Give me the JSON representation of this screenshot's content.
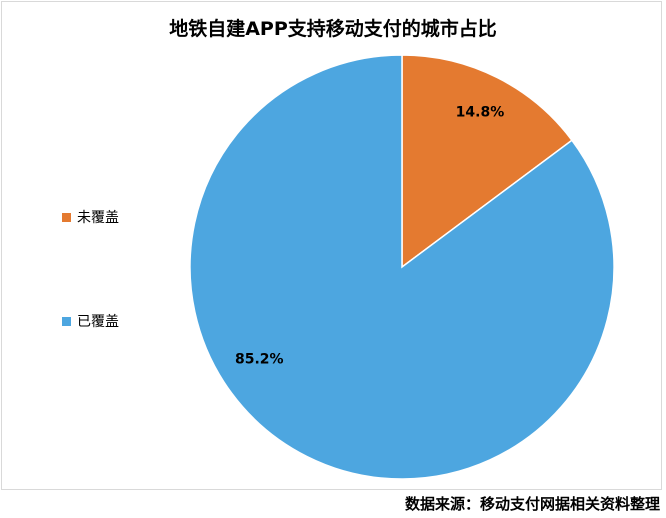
{
  "chart_data": {
    "type": "pie",
    "title": "地铁自建APP支持移动支付的城市占比",
    "slices": [
      {
        "name": "未覆盖",
        "value": 14.8,
        "label": "14.8%",
        "color": "#E47A30"
      },
      {
        "name": "已覆盖",
        "value": 85.2,
        "label": "85.2%",
        "color": "#4DA6E0"
      }
    ],
    "legend_position": "left"
  },
  "source": "数据来源：移动支付网据相关资料整理"
}
